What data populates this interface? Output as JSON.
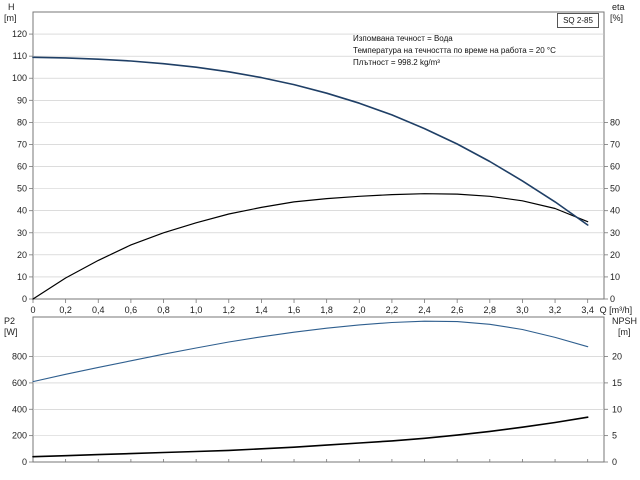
{
  "model": "SQ 2-85",
  "info": {
    "line1": "Изпомвана течност = Вода",
    "line2": "Температура на течността по време на работа = 20 °C",
    "line3": "Плътност = 998.2 kg/m³"
  },
  "colors": {
    "head": "#1f3f66",
    "efficiency": "#000000",
    "power": "#2f5f8f",
    "npsh": "#000000",
    "grid": "#c8c8c8",
    "frame": "#777777"
  },
  "chart_data": [
    {
      "type": "line",
      "x_label": "Q [m³/h]",
      "x_ticks": [
        "0",
        "0,2",
        "0,4",
        "0,6",
        "0,8",
        "1,0",
        "1,2",
        "1,4",
        "1,6",
        "1,8",
        "2,0",
        "2,2",
        "2,4",
        "2,6",
        "2,8",
        "3,0",
        "3,2",
        "3,4"
      ],
      "xlim": [
        0,
        3.5
      ],
      "left_axis": {
        "label": "H",
        "unit": "[m]",
        "ylim": [
          0,
          130
        ],
        "ticks": [
          0,
          10,
          20,
          30,
          40,
          50,
          60,
          70,
          80,
          90,
          100,
          110,
          120
        ]
      },
      "right_axis": {
        "label": "eta",
        "unit": "[%]",
        "ylim": [
          0,
          130
        ],
        "ticks": [
          0,
          10,
          20,
          30,
          40,
          50,
          60,
          70,
          80
        ]
      },
      "series": [
        {
          "axis": "left",
          "color_key": "head",
          "x": [
            0,
            0.2,
            0.4,
            0.6,
            0.8,
            1.0,
            1.2,
            1.4,
            1.6,
            1.8,
            2.0,
            2.2,
            2.4,
            2.6,
            2.8,
            3.0,
            3.2,
            3.4
          ],
          "values": [
            109.5,
            109.2,
            108.6,
            107.8,
            106.6,
            105.0,
            102.9,
            100.3,
            97.1,
            93.2,
            88.7,
            83.4,
            77.2,
            70.2,
            62.3,
            53.5,
            44.0,
            33.5
          ]
        },
        {
          "axis": "right",
          "color_key": "efficiency",
          "x": [
            0,
            0.2,
            0.4,
            0.6,
            0.8,
            1.0,
            1.2,
            1.4,
            1.6,
            1.8,
            2.0,
            2.2,
            2.4,
            2.6,
            2.8,
            3.0,
            3.2,
            3.4
          ],
          "values": [
            0,
            9.5,
            17.5,
            24.5,
            30.0,
            34.5,
            38.5,
            41.5,
            44.0,
            45.5,
            46.5,
            47.3,
            47.7,
            47.5,
            46.5,
            44.5,
            41.0,
            35.0
          ]
        }
      ]
    },
    {
      "type": "line",
      "left_axis": {
        "label": "P2",
        "unit": "[W]",
        "ylim": [
          0,
          1100
        ],
        "ticks": [
          0,
          200,
          400,
          600,
          800
        ]
      },
      "right_axis": {
        "label": "NPSH",
        "unit": "[m]",
        "ylim": [
          0,
          27.5
        ],
        "ticks": [
          0,
          5,
          10,
          15,
          20
        ]
      },
      "series": [
        {
          "axis": "left",
          "color_key": "power",
          "x": [
            0,
            0.2,
            0.4,
            0.6,
            0.8,
            1.0,
            1.2,
            1.4,
            1.6,
            1.8,
            2.0,
            2.2,
            2.4,
            2.6,
            2.8,
            3.0,
            3.2,
            3.4
          ],
          "values": [
            610,
            665,
            718,
            768,
            818,
            865,
            910,
            950,
            985,
            1015,
            1040,
            1058,
            1068,
            1065,
            1045,
            1005,
            945,
            875
          ]
        },
        {
          "axis": "right",
          "color_key": "npsh",
          "x": [
            0,
            0.2,
            0.4,
            0.6,
            0.8,
            1.0,
            1.2,
            1.4,
            1.6,
            1.8,
            2.0,
            2.2,
            2.4,
            2.6,
            2.8,
            3.0,
            3.2,
            3.4
          ],
          "values": [
            1.0,
            1.2,
            1.4,
            1.6,
            1.8,
            2.0,
            2.2,
            2.5,
            2.8,
            3.2,
            3.6,
            4.0,
            4.5,
            5.1,
            5.8,
            6.6,
            7.5,
            8.5
          ]
        }
      ]
    }
  ]
}
